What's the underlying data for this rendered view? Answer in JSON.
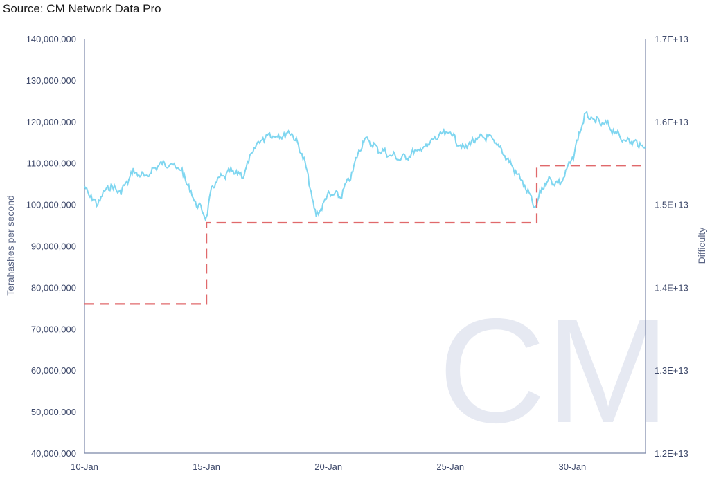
{
  "source": "Source: CM Network Data Pro",
  "watermark": "CM",
  "colors": {
    "hashrate": "#7fd6f0",
    "difficulty": "#e0696b",
    "axis": "#7a86a8",
    "tick_text": "#3f4a6b",
    "watermark": "#e6e9f2"
  },
  "chart_data": {
    "type": "line",
    "x_axis": {
      "type": "date",
      "min": "2020-01-10",
      "max": "2020-02-02",
      "tick_labels": [
        "10-Jan",
        "15-Jan",
        "20-Jan",
        "25-Jan",
        "30-Jan"
      ]
    },
    "y_left": {
      "label": "Terahashes per second",
      "min": 40000000,
      "max": 140000000,
      "tick_labels": [
        "40,000,000",
        "50,000,000",
        "60,000,000",
        "70,000,000",
        "80,000,000",
        "90,000,000",
        "100,000,000",
        "110,000,000",
        "120,000,000",
        "130,000,000",
        "140,000,000"
      ]
    },
    "y_right": {
      "label": "Difficulty",
      "min": 12000000000000.0,
      "max": 17000000000000.0,
      "tick_labels": [
        "1.2E+13",
        "1.3E+13",
        "1.4E+13",
        "1.5E+13",
        "1.6E+13",
        "1.7E+13"
      ]
    },
    "grid": false,
    "series": [
      {
        "axis": "left",
        "style": "solid",
        "points": [
          [
            "2020-01-10T00:00",
            104000000
          ],
          [
            "2020-01-10T12:00",
            100000000
          ],
          [
            "2020-01-11T00:00",
            104500000
          ],
          [
            "2020-01-11T12:00",
            103000000
          ],
          [
            "2020-01-12T00:00",
            108000000
          ],
          [
            "2020-01-12T12:00",
            106500000
          ],
          [
            "2020-01-13T00:00",
            109500000
          ],
          [
            "2020-01-13T12:00",
            110000000
          ],
          [
            "2020-01-14T00:00",
            108000000
          ],
          [
            "2020-01-14T12:00",
            101000000
          ],
          [
            "2020-01-15T00:00",
            97000000
          ],
          [
            "2020-01-15T06:00",
            104500000
          ],
          [
            "2020-01-15T12:00",
            106000000
          ],
          [
            "2020-01-16T00:00",
            108000000
          ],
          [
            "2020-01-16T12:00",
            107000000
          ],
          [
            "2020-01-17T00:00",
            114000000
          ],
          [
            "2020-01-17T12:00",
            117000000
          ],
          [
            "2020-01-18T00:00",
            116500000
          ],
          [
            "2020-01-18T12:00",
            117500000
          ],
          [
            "2020-01-19T00:00",
            111000000
          ],
          [
            "2020-01-19T06:00",
            104000000
          ],
          [
            "2020-01-19T12:00",
            97000000
          ],
          [
            "2020-01-20T00:00",
            102500000
          ],
          [
            "2020-01-20T12:00",
            102000000
          ],
          [
            "2020-01-21T00:00",
            108000000
          ],
          [
            "2020-01-21T06:00",
            113000000
          ],
          [
            "2020-01-21T12:00",
            116000000
          ],
          [
            "2020-01-22T00:00",
            113500000
          ],
          [
            "2020-01-22T12:00",
            112000000
          ],
          [
            "2020-01-23T00:00",
            111000000
          ],
          [
            "2020-01-23T12:00",
            112500000
          ],
          [
            "2020-01-24T00:00",
            114000000
          ],
          [
            "2020-01-24T12:00",
            116500000
          ],
          [
            "2020-01-25T00:00",
            117500000
          ],
          [
            "2020-01-25T12:00",
            113500000
          ],
          [
            "2020-01-26T00:00",
            115500000
          ],
          [
            "2020-01-26T12:00",
            116500000
          ],
          [
            "2020-01-27T00:00",
            114000000
          ],
          [
            "2020-01-27T12:00",
            109500000
          ],
          [
            "2020-01-28T00:00",
            105000000
          ],
          [
            "2020-01-28T12:00",
            99000000
          ],
          [
            "2020-01-28T18:00",
            104000000
          ],
          [
            "2020-01-29T00:00",
            106000000
          ],
          [
            "2020-01-29T12:00",
            105000000
          ],
          [
            "2020-01-30T00:00",
            111000000
          ],
          [
            "2020-01-30T12:00",
            121500000
          ],
          [
            "2020-01-31T00:00",
            120000000
          ],
          [
            "2020-01-31T12:00",
            119000000
          ],
          [
            "2020-02-01T00:00",
            116000000
          ],
          [
            "2020-02-01T12:00",
            115000000
          ],
          [
            "2020-02-02T00:00",
            114000000
          ]
        ]
      },
      {
        "axis": "right",
        "style": "dashed",
        "points": [
          [
            "2020-01-10T00:00",
            13800000000000.0
          ],
          [
            "2020-01-15T00:00",
            13800000000000.0
          ],
          [
            "2020-01-15T00:00",
            14780000000000.0
          ],
          [
            "2020-01-28T13:00",
            14780000000000.0
          ],
          [
            "2020-01-28T13:00",
            15470000000000.0
          ],
          [
            "2020-02-02T00:00",
            15470000000000.0
          ]
        ]
      }
    ]
  }
}
